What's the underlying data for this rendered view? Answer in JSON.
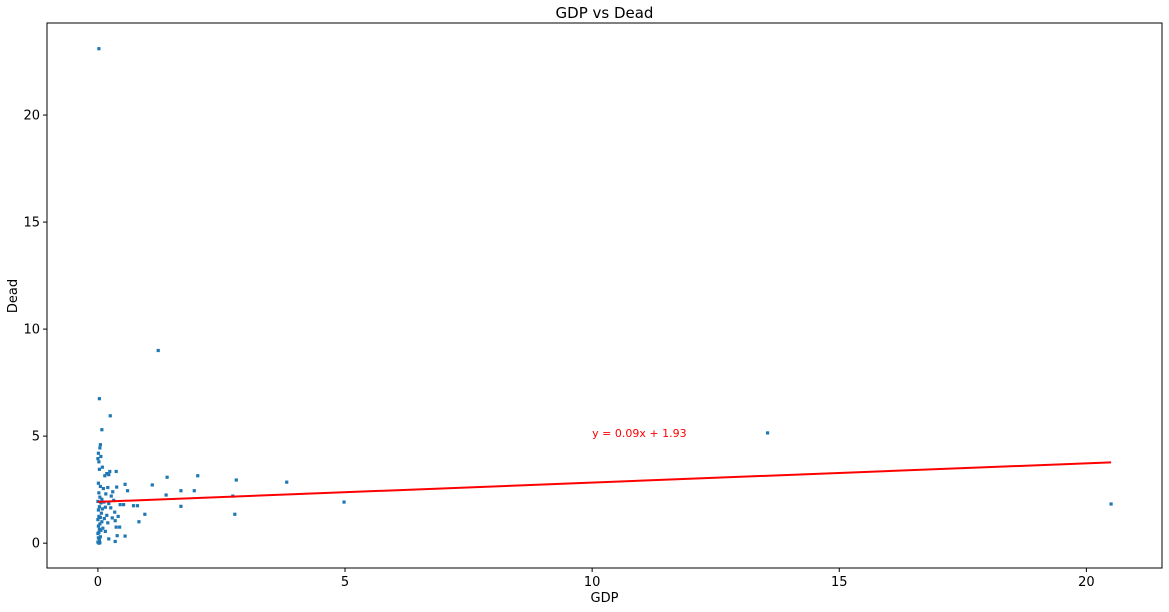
{
  "chart_data": {
    "type": "scatter",
    "title": "GDP vs Dead",
    "xlabel": "GDP",
    "ylabel": "Dead",
    "xlim": [
      -1.03,
      21.53
    ],
    "ylim": [
      -1.16,
      24.3
    ],
    "xticks": [
      0,
      5,
      10,
      15,
      20
    ],
    "xtick_labels": [
      "0",
      "5",
      "10",
      "15",
      "20"
    ],
    "yticks": [
      0,
      5,
      10,
      15,
      20
    ],
    "ytick_labels": [
      "0",
      "5",
      "10",
      "15",
      "20"
    ],
    "grid": false,
    "legend": "none",
    "colors": {
      "points": "#1f77b4",
      "fit_line": "#ff0000",
      "annotation": "#ff0000",
      "spines": "#000000"
    },
    "series": [
      {
        "points": [
          {
            "x": 0.02,
            "y": 23.1
          },
          {
            "x": 1.22,
            "y": 9.0
          },
          {
            "x": 0.03,
            "y": 6.75
          },
          {
            "x": 0.25,
            "y": 5.95
          },
          {
            "x": 0.08,
            "y": 5.3
          },
          {
            "x": 13.55,
            "y": 5.15
          },
          {
            "x": 0.05,
            "y": 4.6
          },
          {
            "x": 0.04,
            "y": 4.45
          },
          {
            "x": 0.01,
            "y": 4.2
          },
          {
            "x": 0.06,
            "y": 4.05
          },
          {
            "x": 0.0,
            "y": 3.95
          },
          {
            "x": 0.02,
            "y": 3.8
          },
          {
            "x": 0.09,
            "y": 3.55
          },
          {
            "x": 0.03,
            "y": 3.45
          },
          {
            "x": 0.24,
            "y": 3.35
          },
          {
            "x": 0.37,
            "y": 3.35
          },
          {
            "x": 0.18,
            "y": 3.25
          },
          {
            "x": 0.22,
            "y": 3.2
          },
          {
            "x": 0.14,
            "y": 3.15
          },
          {
            "x": 2.02,
            "y": 3.15
          },
          {
            "x": 1.4,
            "y": 3.08
          },
          {
            "x": 2.8,
            "y": 2.95
          },
          {
            "x": 3.82,
            "y": 2.85
          },
          {
            "x": 0.01,
            "y": 2.8
          },
          {
            "x": 0.55,
            "y": 2.75
          },
          {
            "x": 1.1,
            "y": 2.72
          },
          {
            "x": 0.05,
            "y": 2.65
          },
          {
            "x": 0.38,
            "y": 2.62
          },
          {
            "x": 0.2,
            "y": 2.6
          },
          {
            "x": 0.11,
            "y": 2.55
          },
          {
            "x": 0.6,
            "y": 2.45
          },
          {
            "x": 1.68,
            "y": 2.45
          },
          {
            "x": 1.95,
            "y": 2.45
          },
          {
            "x": 0.3,
            "y": 2.4
          },
          {
            "x": 0.02,
            "y": 2.35
          },
          {
            "x": 0.16,
            "y": 2.3
          },
          {
            "x": 1.38,
            "y": 2.25
          },
          {
            "x": 0.27,
            "y": 2.2
          },
          {
            "x": 2.73,
            "y": 2.2
          },
          {
            "x": 0.04,
            "y": 2.15
          },
          {
            "x": 0.08,
            "y": 2.05
          },
          {
            "x": 0.32,
            "y": 2.0
          },
          {
            "x": 0.0,
            "y": 1.95
          },
          {
            "x": 0.12,
            "y": 1.92
          },
          {
            "x": 4.98,
            "y": 1.92
          },
          {
            "x": 0.06,
            "y": 1.88
          },
          {
            "x": 0.22,
            "y": 1.85
          },
          {
            "x": 20.5,
            "y": 1.83
          },
          {
            "x": 0.45,
            "y": 1.8
          },
          {
            "x": 0.52,
            "y": 1.8
          },
          {
            "x": 0.72,
            "y": 1.75
          },
          {
            "x": 0.8,
            "y": 1.75
          },
          {
            "x": 1.68,
            "y": 1.72
          },
          {
            "x": 0.03,
            "y": 1.7
          },
          {
            "x": 0.15,
            "y": 1.68
          },
          {
            "x": 0.26,
            "y": 1.65
          },
          {
            "x": 0.09,
            "y": 1.6
          },
          {
            "x": 0.01,
            "y": 1.55
          },
          {
            "x": 0.34,
            "y": 1.45
          },
          {
            "x": 0.07,
            "y": 1.4
          },
          {
            "x": 0.95,
            "y": 1.35
          },
          {
            "x": 2.77,
            "y": 1.35
          },
          {
            "x": 0.18,
            "y": 1.3
          },
          {
            "x": 0.02,
            "y": 1.25
          },
          {
            "x": 0.41,
            "y": 1.25
          },
          {
            "x": 0.05,
            "y": 1.2
          },
          {
            "x": 0.29,
            "y": 1.18
          },
          {
            "x": 0.13,
            "y": 1.15
          },
          {
            "x": 0.0,
            "y": 1.1
          },
          {
            "x": 0.35,
            "y": 1.05
          },
          {
            "x": 0.08,
            "y": 1.0
          },
          {
            "x": 0.83,
            "y": 1.0
          },
          {
            "x": 0.2,
            "y": 0.95
          },
          {
            "x": 0.04,
            "y": 0.9
          },
          {
            "x": 0.01,
            "y": 0.8
          },
          {
            "x": 0.37,
            "y": 0.75
          },
          {
            "x": 0.44,
            "y": 0.75
          },
          {
            "x": 0.1,
            "y": 0.7
          },
          {
            "x": 0.03,
            "y": 0.65
          },
          {
            "x": 0.06,
            "y": 0.6
          },
          {
            "x": 0.15,
            "y": 0.55
          },
          {
            "x": 0.02,
            "y": 0.5
          },
          {
            "x": 0.0,
            "y": 0.45
          },
          {
            "x": 0.39,
            "y": 0.35
          },
          {
            "x": 0.55,
            "y": 0.33
          },
          {
            "x": 0.05,
            "y": 0.3
          },
          {
            "x": 0.01,
            "y": 0.25
          },
          {
            "x": 0.22,
            "y": 0.2
          },
          {
            "x": 0.03,
            "y": 0.15
          },
          {
            "x": 0.35,
            "y": 0.08
          },
          {
            "x": 0.0,
            "y": 0.05
          },
          {
            "x": 0.04,
            "y": 0.02
          },
          {
            "x": 0.02,
            "y": 0.0
          }
        ]
      }
    ],
    "fit_line": {
      "slope": 0.09,
      "intercept": 1.93,
      "x_range": [
        0.0,
        20.5
      ]
    },
    "annotations": [
      {
        "text": "y = 0.09x + 1.93",
        "x": 10.0,
        "y": 4.95
      }
    ]
  }
}
